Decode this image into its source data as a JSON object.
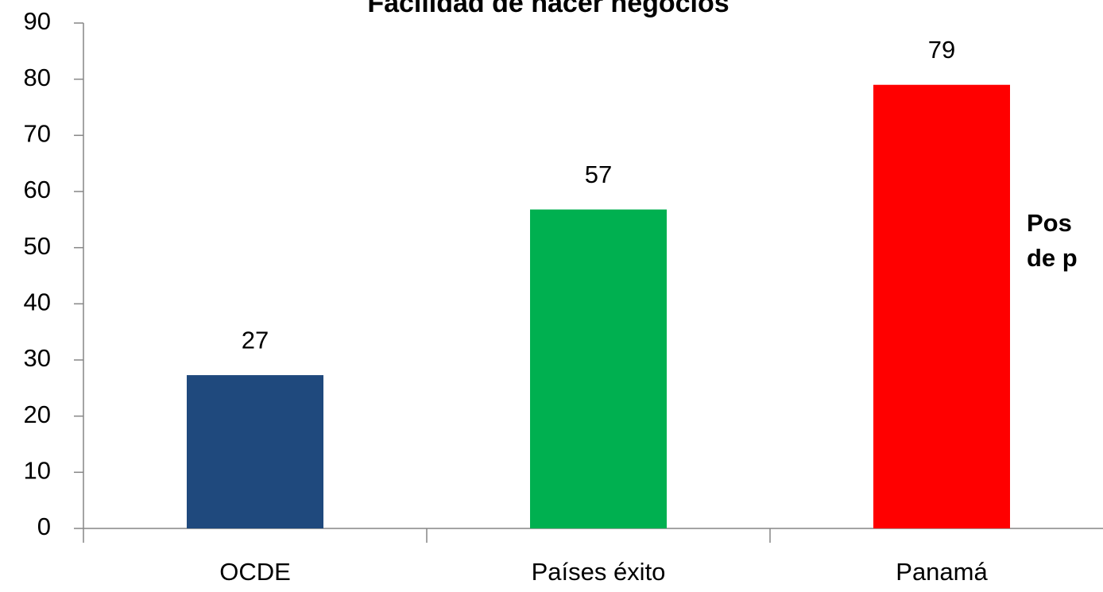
{
  "chart_data": {
    "type": "bar",
    "title": "Facilidad de hacer negocios",
    "categories": [
      "OCDE",
      "Países éxito",
      "Panamá"
    ],
    "values": [
      27.3,
      56.8,
      79
    ],
    "value_labels": [
      "27",
      "57",
      "79"
    ],
    "colors": [
      "#1f497d",
      "#00b050",
      "#ff0000"
    ],
    "ylim": [
      0,
      90
    ],
    "yticks": [
      0,
      10,
      20,
      30,
      40,
      50,
      60,
      70,
      80,
      90
    ],
    "grid": false,
    "annotation": [
      "Pos",
      "de p"
    ]
  }
}
